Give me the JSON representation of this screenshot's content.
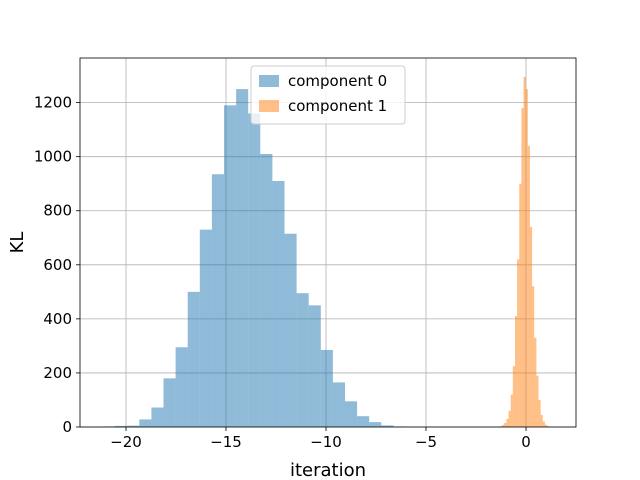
{
  "chart_data": {
    "type": "histogram",
    "title": "",
    "xlabel": "iteration",
    "ylabel": "KL",
    "xlim": [
      -22.3,
      2.5
    ],
    "ylim": [
      0,
      1365
    ],
    "grid": true,
    "legend_position": "top-center",
    "x_ticks": [
      -20,
      -15,
      -10,
      -5,
      0
    ],
    "x_tick_labels": [
      "−20",
      "−15",
      "−10",
      "−5",
      "0"
    ],
    "y_ticks": [
      0,
      200,
      400,
      600,
      800,
      1000,
      1200
    ],
    "y_tick_labels": [
      "0",
      "200",
      "400",
      "600",
      "800",
      "1000",
      "1200"
    ],
    "series": [
      {
        "name": "component 0",
        "color": "#1f77b4",
        "alpha": 0.5,
        "bin_start": -21.15,
        "bin_width": 0.605,
        "values": [
          2,
          4,
          5,
          28,
          72,
          180,
          295,
          500,
          730,
          935,
          1190,
          1250,
          1160,
          1010,
          910,
          715,
          495,
          450,
          285,
          165,
          95,
          40,
          18,
          6,
          2
        ]
      },
      {
        "name": "component 1",
        "color": "#ff7f0e",
        "alpha": 0.5,
        "bin_start": -1.3,
        "bin_width": 0.107,
        "values": [
          3,
          8,
          15,
          30,
          60,
          120,
          225,
          410,
          620,
          900,
          1180,
          1295,
          1250,
          1040,
          740,
          520,
          330,
          190,
          100,
          45,
          20,
          8,
          3
        ]
      }
    ]
  }
}
